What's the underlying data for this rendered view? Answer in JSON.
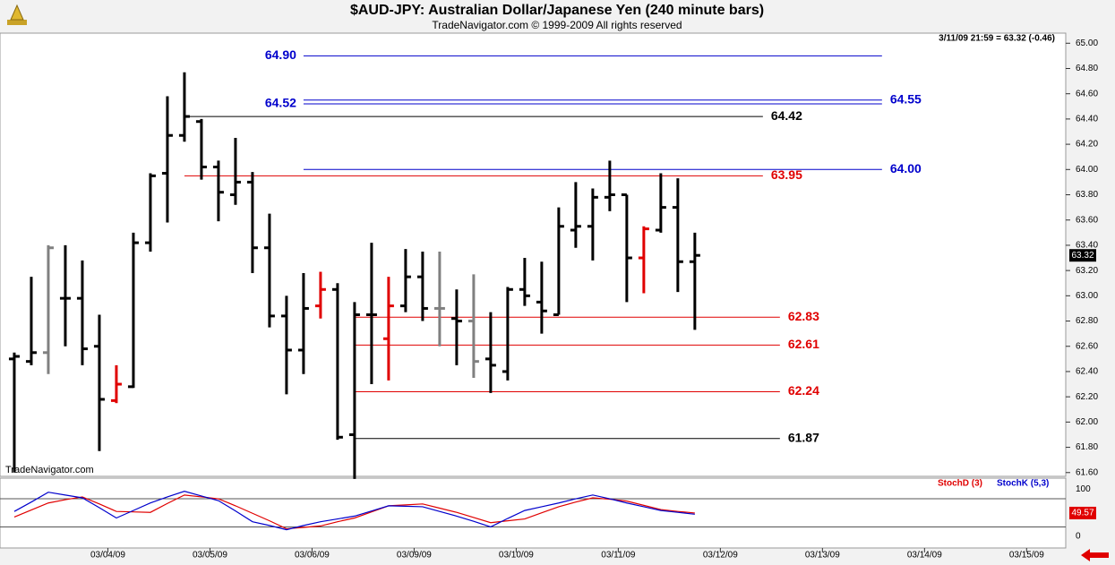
{
  "chart_data": [
    {
      "type": "ohlc",
      "title": "$AUD-JPY:  Australian Dollar/Japanese Yen  (240 minute bars)",
      "subtitle": "TradeNavigator.com © 1999-2009 All rights reserved",
      "info": "3/11/09 21:59 = 63.32 (-0.46)",
      "watermark": "TradeNavigator.com",
      "open": [
        62.5,
        62.48,
        62.55,
        62.98,
        62.98,
        62.6,
        62.17,
        62.28,
        63.42,
        63.97,
        64.27,
        64.38,
        64.02,
        63.8,
        63.9,
        63.38,
        62.84,
        62.57,
        62.92,
        63.05,
        61.9,
        62.85,
        62.66,
        62.92,
        63.15,
        62.9,
        62.82,
        62.8,
        62.5,
        62.4,
        63.05,
        62.95,
        62.85,
        63.52,
        63.55,
        63.78,
        63.8,
        63.3,
        63.52,
        63.7,
        63.27
      ],
      "high": [
        62.55,
        63.15,
        63.4,
        63.4,
        63.28,
        62.85,
        62.45,
        63.5,
        63.97,
        64.58,
        64.77,
        64.4,
        64.07,
        64.25,
        63.98,
        63.65,
        63.0,
        63.18,
        63.19,
        63.1,
        62.95,
        63.42,
        63.15,
        63.37,
        63.35,
        63.35,
        63.05,
        63.17,
        62.87,
        63.07,
        63.3,
        63.27,
        63.7,
        63.9,
        63.85,
        64.07,
        63.8,
        63.55,
        63.97,
        63.93,
        63.5
      ],
      "low": [
        61.6,
        62.45,
        62.38,
        62.6,
        62.45,
        61.77,
        62.15,
        62.27,
        63.35,
        63.58,
        64.22,
        63.92,
        63.59,
        63.72,
        63.18,
        62.75,
        62.22,
        62.38,
        62.82,
        61.86,
        61.55,
        62.3,
        62.33,
        62.87,
        62.8,
        62.6,
        62.45,
        62.35,
        62.23,
        62.33,
        62.92,
        62.7,
        62.85,
        63.38,
        63.28,
        63.67,
        62.95,
        63.02,
        63.5,
        63.03,
        62.73
      ],
      "close": [
        62.52,
        62.55,
        63.38,
        62.98,
        62.58,
        62.18,
        62.3,
        63.42,
        63.95,
        64.27,
        64.42,
        64.02,
        63.82,
        63.9,
        63.38,
        62.84,
        62.57,
        62.9,
        63.05,
        61.88,
        62.85,
        62.85,
        62.92,
        63.15,
        62.9,
        62.9,
        62.8,
        62.48,
        62.45,
        63.05,
        63.0,
        62.88,
        63.55,
        63.55,
        63.78,
        63.8,
        63.3,
        63.53,
        63.7,
        63.27,
        63.32
      ],
      "colors": [
        "#000000",
        "#000000",
        "#808080",
        "#000000",
        "#000000",
        "#000000",
        "#e00000",
        "#000000",
        "#000000",
        "#000000",
        "#000000",
        "#000000",
        "#000000",
        "#000000",
        "#000000",
        "#000000",
        "#000000",
        "#000000",
        "#e00000",
        "#000000",
        "#000000",
        "#000000",
        "#e00000",
        "#000000",
        "#000000",
        "#808080",
        "#000000",
        "#808080",
        "#000000",
        "#000000",
        "#000000",
        "#000000",
        "#000000",
        "#000000",
        "#000000",
        "#000000",
        "#000000",
        "#e00000",
        "#000000",
        "#000000",
        "#000000"
      ],
      "levels": [
        {
          "value": 64.9,
          "label": "64.90",
          "color": "#0000cc",
          "x": [
            17,
            51
          ],
          "label_side": "left"
        },
        {
          "value": 64.52,
          "label": "64.52",
          "color": "#0000cc",
          "x": [
            17,
            51
          ],
          "label_side": "left"
        },
        {
          "value": 64.55,
          "label": "64.55",
          "color": "#0000cc",
          "x": [
            17,
            51
          ],
          "label_side": "right"
        },
        {
          "value": 64.42,
          "label": "64.42",
          "color": "#000000",
          "x": [
            10,
            44
          ],
          "label_side": "right"
        },
        {
          "value": 64.0,
          "label": "64.00",
          "color": "#0000cc",
          "x": [
            17,
            51
          ],
          "label_side": "right"
        },
        {
          "value": 63.95,
          "label": "63.95",
          "color": "#e00000",
          "x": [
            10,
            44
          ],
          "label_side": "right"
        },
        {
          "value": 62.83,
          "label": "62.83",
          "color": "#e00000",
          "x": [
            20,
            45
          ],
          "label_side": "right"
        },
        {
          "value": 62.61,
          "label": "62.61",
          "color": "#e00000",
          "x": [
            20,
            45
          ],
          "label_side": "right"
        },
        {
          "value": 62.24,
          "label": "62.24",
          "color": "#e00000",
          "x": [
            20,
            45
          ],
          "label_side": "right"
        },
        {
          "value": 61.87,
          "label": "61.87",
          "color": "#000000",
          "x": [
            20,
            45
          ],
          "label_side": "right"
        }
      ],
      "xlim": [
        -0.84,
        61.8
      ],
      "xticks": [
        {
          "value": 5.5,
          "label": "03/04/09"
        },
        {
          "value": 11.5,
          "label": "03/05/09"
        },
        {
          "value": 17.5,
          "label": "03/06/09"
        },
        {
          "value": 23.5,
          "label": "03/09/09"
        },
        {
          "value": 29.5,
          "label": "03/10/09"
        },
        {
          "value": 35.5,
          "label": "03/11/09"
        },
        {
          "value": 41.5,
          "label": "03/12/09"
        },
        {
          "value": 47.5,
          "label": "03/13/09"
        },
        {
          "value": 53.5,
          "label": "03/14/09"
        },
        {
          "value": 59.5,
          "label": "03/15/09"
        }
      ],
      "ylim": [
        61.57,
        65.08
      ],
      "yticks": [
        {
          "value": 61.6,
          "label": "61.60"
        },
        {
          "value": 61.8,
          "label": "61.80"
        },
        {
          "value": 62.0,
          "label": "62.00"
        },
        {
          "value": 62.2,
          "label": "62.20"
        },
        {
          "value": 62.4,
          "label": "62.40"
        },
        {
          "value": 62.6,
          "label": "62.60"
        },
        {
          "value": 62.8,
          "label": "62.80"
        },
        {
          "value": 63.0,
          "label": "63.00"
        },
        {
          "value": 63.2,
          "label": "63.20"
        },
        {
          "value": 63.4,
          "label": "63.40"
        },
        {
          "value": 63.6,
          "label": "63.60"
        },
        {
          "value": 63.8,
          "label": "63.80"
        },
        {
          "value": 64.0,
          "label": "64.00"
        },
        {
          "value": 64.2,
          "label": "64.20"
        },
        {
          "value": 64.4,
          "label": "64.40"
        },
        {
          "value": 64.6,
          "label": "64.60"
        },
        {
          "value": 64.8,
          "label": "64.80"
        },
        {
          "value": 65.0,
          "label": "65.00"
        }
      ]
    },
    {
      "type": "line",
      "series": [
        {
          "name": "StochD (3)",
          "color": "#e00000",
          "values": [
            41,
            56,
            71,
            78,
            84,
            69,
            53,
            52,
            51,
            70,
            88,
            84,
            80,
            65,
            49,
            33,
            16,
            19,
            22,
            31,
            39,
            52,
            65,
            67,
            69,
            60,
            51,
            40,
            29,
            33,
            37,
            50,
            63,
            73,
            82,
            79,
            75,
            66,
            57,
            53,
            49.57
          ]
        },
        {
          "name": "StochK (5,3)",
          "color": "#0000cc",
          "values": [
            53,
            73,
            94,
            88,
            82,
            61,
            39,
            55,
            71,
            84,
            96,
            86,
            76,
            54,
            31,
            23,
            14,
            23,
            31,
            37,
            43,
            54,
            65,
            64,
            63,
            53,
            43,
            32,
            20,
            38,
            55,
            63,
            71,
            80,
            88,
            80,
            71,
            63,
            55,
            51,
            47
          ]
        }
      ],
      "guides": [
        20,
        80
      ],
      "ylim": [
        -25,
        124
      ],
      "yticks": [
        0,
        100
      ]
    }
  ]
}
